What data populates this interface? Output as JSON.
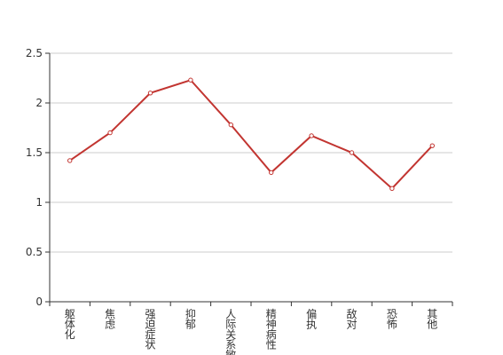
{
  "chart_data": {
    "type": "line",
    "categories": [
      "躯体化",
      "焦虑",
      "强迫症状",
      "抑郁",
      "人际关系敏感",
      "精神病性",
      "偏执",
      "敌对",
      "恐怖",
      "其他"
    ],
    "series": [
      {
        "color": "#c23531",
        "values": [
          1.42,
          1.7,
          2.1,
          2.23,
          1.78,
          1.3,
          1.67,
          1.5,
          1.14,
          1.57
        ]
      }
    ],
    "ylim": [
      0,
      2.5
    ],
    "yticks": [
      0,
      0.5,
      1,
      1.5,
      2,
      2.5
    ],
    "grid": true
  }
}
